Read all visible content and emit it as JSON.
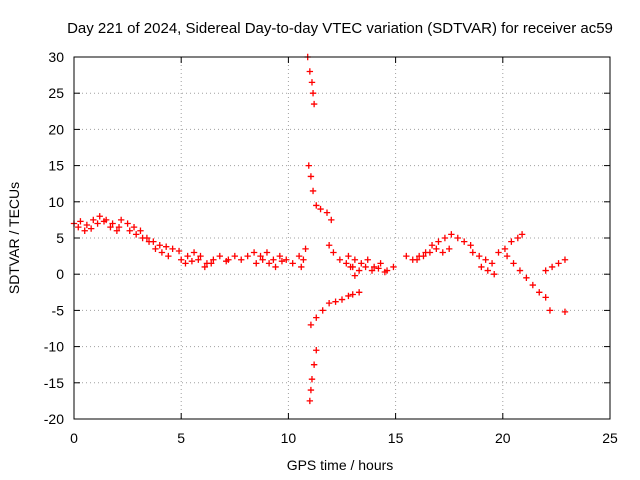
{
  "chart_data": {
    "type": "scatter",
    "title": "Day 221 of 2024, Sidereal Day-to-day VTEC variation (SDTVAR) for receiver ac59",
    "xlabel": "GPS time / hours",
    "ylabel": "SDTVAR / TECUs",
    "xlim": [
      0,
      25
    ],
    "ylim": [
      -20,
      30
    ],
    "xticks": [
      0,
      5,
      10,
      15,
      20,
      25
    ],
    "yticks": [
      -20,
      -15,
      -10,
      -5,
      0,
      5,
      10,
      15,
      20,
      25,
      30
    ],
    "grid": true,
    "marker": "plus",
    "color": "#ff0000",
    "series": [
      {
        "name": "SDTVAR",
        "segments": [
          {
            "x": [
              0.0,
              0.3,
              0.6,
              0.9,
              1.2,
              1.5,
              1.8,
              2.1
            ],
            "y": [
              7.0,
              7.3,
              6.8,
              7.5,
              8.0,
              7.5,
              7.0,
              6.5
            ]
          },
          {
            "x": [
              0.2,
              0.5,
              0.8,
              1.1,
              1.4,
              1.7,
              2.0
            ],
            "y": [
              6.5,
              6.0,
              6.3,
              7.0,
              7.3,
              6.5,
              6.0
            ]
          },
          {
            "x": [
              2.2,
              2.5,
              2.8,
              3.1,
              3.4,
              3.7,
              4.0,
              4.3,
              4.6,
              4.9
            ],
            "y": [
              7.5,
              7.0,
              6.5,
              6.0,
              5.0,
              4.5,
              4.0,
              3.8,
              3.5,
              3.2
            ]
          },
          {
            "x": [
              2.6,
              2.9,
              3.2,
              3.5,
              3.8,
              4.1,
              4.4
            ],
            "y": [
              6.0,
              5.5,
              5.0,
              4.5,
              3.5,
              3.0,
              2.5
            ]
          },
          {
            "x": [
              5.0,
              5.3,
              5.6,
              5.9,
              6.2,
              6.5,
              6.8,
              7.1
            ],
            "y": [
              2.0,
              2.5,
              3.0,
              2.5,
              1.5,
              2.0,
              2.5,
              1.8
            ]
          },
          {
            "x": [
              5.2,
              5.5,
              5.8,
              6.1,
              6.4
            ],
            "y": [
              1.5,
              1.8,
              2.0,
              1.0,
              1.5
            ]
          },
          {
            "x": [
              7.2,
              7.5,
              7.8,
              8.1,
              8.4,
              8.7,
              9.0,
              9.3,
              9.6,
              9.9,
              10.2,
              10.5
            ],
            "y": [
              2.0,
              2.5,
              2.0,
              2.5,
              3.0,
              2.5,
              3.0,
              2.0,
              2.5,
              2.0,
              1.5,
              2.5
            ]
          },
          {
            "x": [
              8.5,
              8.8,
              9.1,
              9.4,
              9.7
            ],
            "y": [
              1.5,
              2.0,
              1.5,
              1.0,
              1.8
            ]
          },
          {
            "x": [
              10.6,
              10.7,
              10.8
            ],
            "y": [
              1.0,
              2.0,
              3.5
            ]
          },
          {
            "x": [
              10.9,
              11.0,
              11.1,
              11.15,
              11.2
            ],
            "y": [
              30,
              28,
              26.5,
              25,
              23.5
            ]
          },
          {
            "x": [
              10.95,
              11.05,
              11.15,
              11.3,
              11.5,
              11.8,
              12.0
            ],
            "y": [
              15,
              13.5,
              11.5,
              9.5,
              9.0,
              8.5,
              7.5
            ]
          },
          {
            "x": [
              11.9,
              12.1,
              12.4,
              12.7,
              12.9
            ],
            "y": [
              4.0,
              3.0,
              2.0,
              1.5,
              1.0
            ]
          },
          {
            "x": [
              11.3,
              11.2,
              11.1,
              11.05,
              11.0
            ],
            "y": [
              -10.5,
              -12.5,
              -14.5,
              -16.0,
              -17.5
            ]
          },
          {
            "x": [
              11.05,
              11.3,
              11.6,
              11.9,
              12.2,
              12.5,
              12.8,
              13.0,
              13.3
            ],
            "y": [
              -7.0,
              -6.0,
              -5.0,
              -4.0,
              -3.8,
              -3.5,
              -3.0,
              -2.8,
              -2.5
            ]
          },
          {
            "x": [
              12.8,
              13.1,
              13.4,
              13.7,
              14.0,
              14.3,
              14.6,
              14.9
            ],
            "y": [
              2.5,
              2.0,
              1.5,
              2.0,
              1.0,
              1.5,
              0.5,
              1.0
            ]
          },
          {
            "x": [
              13.0,
              13.3,
              13.6,
              13.9,
              14.2,
              14.5
            ],
            "y": [
              1.0,
              0.5,
              1.0,
              0.5,
              0.8,
              0.3
            ]
          },
          {
            "x": [
              13.1
            ],
            "y": [
              -0.2
            ]
          },
          {
            "x": [
              15.5,
              15.8,
              16.1,
              16.4,
              16.7,
              17.0,
              17.3,
              17.6,
              17.9,
              18.2,
              18.5
            ],
            "y": [
              2.5,
              2.0,
              2.5,
              3.0,
              4.0,
              4.5,
              5.0,
              5.5,
              5.0,
              4.5,
              4.0
            ]
          },
          {
            "x": [
              16.0,
              16.3,
              16.6,
              16.9,
              17.2,
              17.5
            ],
            "y": [
              2.0,
              2.5,
              3.0,
              3.5,
              3.0,
              3.5
            ]
          },
          {
            "x": [
              18.6,
              18.9,
              19.2,
              19.5,
              19.8,
              20.1,
              20.4,
              20.7,
              20.9
            ],
            "y": [
              3.0,
              2.5,
              2.0,
              1.5,
              3.0,
              3.5,
              4.5,
              5.0,
              5.5
            ]
          },
          {
            "x": [
              19.0,
              19.3,
              19.6
            ],
            "y": [
              1.0,
              0.5,
              0.0
            ]
          },
          {
            "x": [
              20.2,
              20.5,
              20.8,
              21.1,
              21.4,
              21.7,
              22.0
            ],
            "y": [
              2.5,
              1.5,
              0.5,
              -0.5,
              -1.5,
              -2.5,
              -3.2
            ]
          },
          {
            "x": [
              22.0,
              22.3,
              22.6,
              22.9
            ],
            "y": [
              0.5,
              1.0,
              1.5,
              2.0
            ]
          },
          {
            "x": [
              22.2,
              22.9
            ],
            "y": [
              -5.0,
              -5.2
            ]
          }
        ]
      }
    ]
  }
}
